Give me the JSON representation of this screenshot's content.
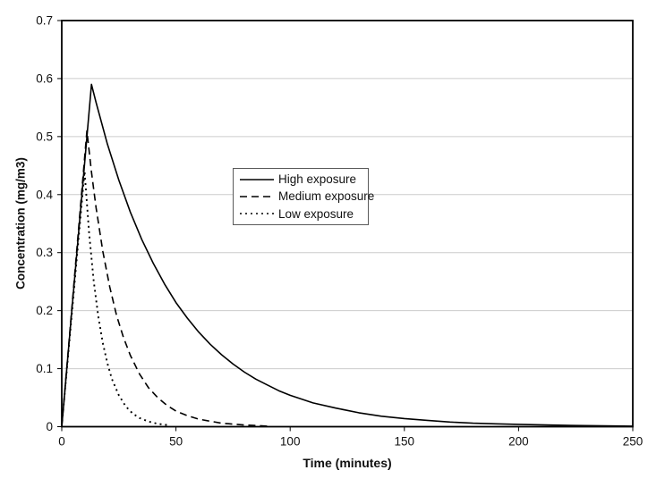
{
  "chart_data": {
    "type": "line",
    "title": "",
    "xlabel": "Time (minutes)",
    "ylabel": "Concentration (mg/m3)",
    "xlim": [
      0,
      250
    ],
    "ylim": [
      0,
      0.7
    ],
    "x_ticks": [
      0,
      50,
      100,
      150,
      200,
      250
    ],
    "x_tick_labels": [
      "0",
      "50",
      "100",
      "150",
      "200",
      "250"
    ],
    "y_ticks": [
      0,
      0.1,
      0.2,
      0.3,
      0.4,
      0.5,
      0.6,
      0.7
    ],
    "y_tick_labels": [
      "0",
      "0.1",
      "0.2",
      "0.3",
      "0.4",
      "0.5",
      "0.6",
      "0.7"
    ],
    "grid": "horizontal",
    "legend_position": "upper-left-of-center",
    "colors": {
      "line": "#000000",
      "grid": "#cccccc",
      "axis": "#000000",
      "background": "#ffffff"
    },
    "series": [
      {
        "name": "High exposure",
        "line_style": "solid",
        "dash": "",
        "peak": {
          "t": 13,
          "c": 0.59
        },
        "points": [
          [
            0,
            0
          ],
          [
            13,
            0.59
          ],
          [
            15,
            0.559
          ],
          [
            20,
            0.487
          ],
          [
            25,
            0.425
          ],
          [
            30,
            0.37
          ],
          [
            35,
            0.323
          ],
          [
            40,
            0.282
          ],
          [
            45,
            0.246
          ],
          [
            50,
            0.214
          ],
          [
            55,
            0.187
          ],
          [
            60,
            0.163
          ],
          [
            65,
            0.142
          ],
          [
            70,
            0.124
          ],
          [
            75,
            0.108
          ],
          [
            80,
            0.094
          ],
          [
            85,
            0.082
          ],
          [
            90,
            0.072
          ],
          [
            95,
            0.062
          ],
          [
            100,
            0.054
          ],
          [
            110,
            0.041
          ],
          [
            120,
            0.032
          ],
          [
            130,
            0.024
          ],
          [
            140,
            0.018
          ],
          [
            150,
            0.014
          ],
          [
            160,
            0.011
          ],
          [
            170,
            0.008
          ],
          [
            180,
            0.006
          ],
          [
            190,
            0.005
          ],
          [
            200,
            0.004
          ],
          [
            225,
            0.002
          ],
          [
            250,
            0.001
          ]
        ]
      },
      {
        "name": "Medium exposure",
        "line_style": "dashed",
        "dash": "8,5",
        "peak": {
          "t": 11,
          "c": 0.51
        },
        "points": [
          [
            0,
            0
          ],
          [
            11,
            0.51
          ],
          [
            13,
            0.439
          ],
          [
            15,
            0.378
          ],
          [
            18,
            0.302
          ],
          [
            21,
            0.241
          ],
          [
            24,
            0.192
          ],
          [
            27,
            0.154
          ],
          [
            30,
            0.123
          ],
          [
            34,
            0.091
          ],
          [
            38,
            0.067
          ],
          [
            42,
            0.05
          ],
          [
            46,
            0.037
          ],
          [
            50,
            0.027
          ],
          [
            55,
            0.019
          ],
          [
            60,
            0.013
          ],
          [
            70,
            0.006
          ],
          [
            80,
            0.003
          ],
          [
            90,
            0.001
          ]
        ]
      },
      {
        "name": "Low exposure",
        "line_style": "dotted",
        "dash": "2,4",
        "peak": {
          "t": 10,
          "c": 0.44
        },
        "points": [
          [
            0,
            0
          ],
          [
            10,
            0.44
          ],
          [
            12,
            0.333
          ],
          [
            14,
            0.251
          ],
          [
            16,
            0.19
          ],
          [
            18,
            0.144
          ],
          [
            20,
            0.109
          ],
          [
            22,
            0.082
          ],
          [
            25,
            0.054
          ],
          [
            28,
            0.035
          ],
          [
            31,
            0.023
          ],
          [
            34,
            0.015
          ],
          [
            38,
            0.009
          ],
          [
            42,
            0.005
          ],
          [
            46,
            0.003
          ]
        ]
      }
    ]
  }
}
